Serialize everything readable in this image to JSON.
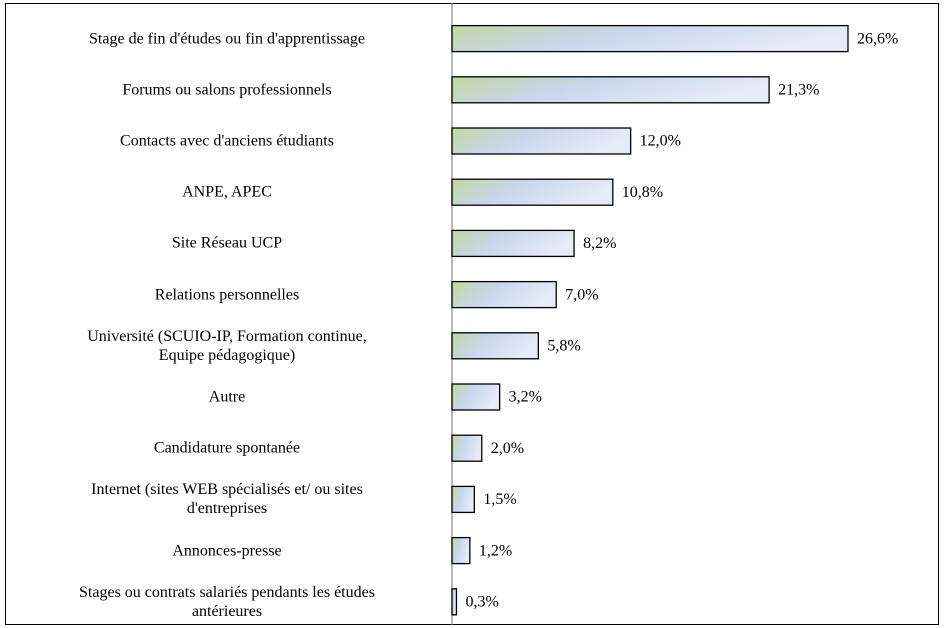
{
  "chart_data": {
    "type": "bar",
    "orientation": "horizontal",
    "categories": [
      "Stage de fin d'études ou fin d'apprentissage",
      "Forums ou salons professionnels",
      "Contacts avec d'anciens étudiants",
      "ANPE, APEC",
      "Site Réseau UCP",
      "Relations personnelles",
      "Université (SCUIO-IP, Formation continue,\nEquipe pédagogique)",
      "Autre",
      "Candidature spontanée",
      "Internet (sites WEB spécialisés et/ ou sites\nd'entreprises",
      "Annonces-presse",
      "Stages ou contrats salariés pendants les études\nantérieures"
    ],
    "values": [
      26.6,
      21.3,
      12.0,
      10.8,
      8.2,
      7.0,
      5.8,
      3.2,
      2.0,
      1.5,
      1.2,
      0.3
    ],
    "value_labels": [
      "26,6%",
      "21,3%",
      "12,0%",
      "10,8%",
      "8,2%",
      "7,0%",
      "5,8%",
      "3,2%",
      "2,0%",
      "1,5%",
      "1,2%",
      "0,3%"
    ]
  }
}
